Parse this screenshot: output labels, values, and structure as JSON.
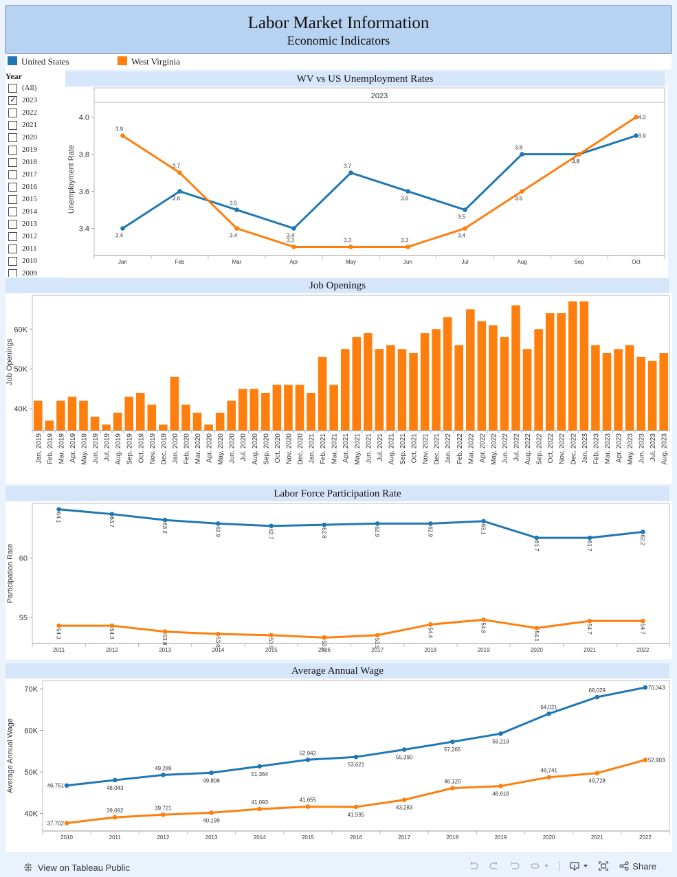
{
  "header": {
    "title": "Labor Market Information",
    "subtitle": "Economic Indicators"
  },
  "legend": [
    {
      "label": "United States",
      "color": "#1f77b4"
    },
    {
      "label": "West Virginia",
      "color": "#ff7f0e"
    }
  ],
  "filter": {
    "title": "Year",
    "options": [
      {
        "label": "(All)",
        "checked": false
      },
      {
        "label": "2023",
        "checked": true
      },
      {
        "label": "2022",
        "checked": false
      },
      {
        "label": "2021",
        "checked": false
      },
      {
        "label": "2020",
        "checked": false
      },
      {
        "label": "2019",
        "checked": false
      },
      {
        "label": "2018",
        "checked": false
      },
      {
        "label": "2017",
        "checked": false
      },
      {
        "label": "2016",
        "checked": false
      },
      {
        "label": "2015",
        "checked": false
      },
      {
        "label": "2014",
        "checked": false
      },
      {
        "label": "2013",
        "checked": false
      },
      {
        "label": "2012",
        "checked": false
      },
      {
        "label": "2011",
        "checked": false
      },
      {
        "label": "2010",
        "checked": false
      },
      {
        "label": "2009",
        "checked": false
      }
    ]
  },
  "chart_data": [
    {
      "id": "unemployment",
      "type": "line",
      "title": "WV vs US Unemployment Rates",
      "pane_header": "2023",
      "xlabel": "",
      "ylabel": "Unemployment Rate",
      "categories": [
        "Jan",
        "Feb",
        "Mar",
        "Apr",
        "May",
        "Jun",
        "Jul",
        "Aug",
        "Sep",
        "Oct"
      ],
      "ylim": [
        3.25,
        4.08
      ],
      "yticks": [
        3.4,
        3.6,
        3.8,
        4.0
      ],
      "ytick_labels": [
        "3.4",
        "3.6",
        "3.8",
        "4.0"
      ],
      "grid": false,
      "series": [
        {
          "name": "United States",
          "color": "#1f77b4",
          "values": [
            3.4,
            3.6,
            3.5,
            3.4,
            3.7,
            3.6,
            3.5,
            3.8,
            3.8,
            3.9
          ]
        },
        {
          "name": "West Virginia",
          "color": "#ff7f0e",
          "values": [
            3.9,
            3.7,
            3.4,
            3.3,
            3.3,
            3.3,
            3.4,
            3.6,
            3.8,
            4.0
          ]
        }
      ]
    },
    {
      "id": "job_openings",
      "type": "bar",
      "title": "Job Openings",
      "xlabel": "",
      "ylabel": "Job Openings",
      "ylim": [
        34500,
        68500
      ],
      "yticks": [
        40000,
        50000,
        60000
      ],
      "ytick_labels": [
        "40K",
        "50K",
        "60K"
      ],
      "grid": false,
      "color": "#ff7f0e",
      "categories": [
        "Jan. 2019",
        "Feb. 2019",
        "Mar. 2019",
        "Apr. 2019",
        "May. 2019",
        "Jun. 2019",
        "Jul. 2019",
        "Aug. 2019",
        "Sep. 2019",
        "Oct. 2019",
        "Nov. 2019",
        "Dec. 2019",
        "Jan. 2020",
        "Feb. 2020",
        "Mar. 2020",
        "Apr. 2020",
        "May. 2020",
        "Jun. 2020",
        "Jul. 2020",
        "Aug. 2020",
        "Sep. 2020",
        "Oct. 2020",
        "Nov. 2020",
        "Dec. 2020",
        "Jan. 2021",
        "Feb. 2021",
        "Mar. 2021",
        "Apr. 2021",
        "May. 2021",
        "Jun. 2021",
        "Jul. 2021",
        "Aug. 2021",
        "Sep. 2021",
        "Oct. 2021",
        "Nov. 2021",
        "Dec. 2021",
        "Jan. 2022",
        "Feb. 2022",
        "Mar. 2022",
        "Apr. 2022",
        "May. 2022",
        "Jun. 2022",
        "Jul. 2022",
        "Aug. 2022",
        "Sep. 2022",
        "Oct. 2022",
        "Nov. 2022",
        "Dec. 2022",
        "Jan. 2023",
        "Feb. 2023",
        "Mar. 2023",
        "Apr. 2023",
        "May. 2023",
        "Jun. 2023",
        "Jul. 2023",
        "Aug. 2023"
      ],
      "values": [
        42000,
        37000,
        42000,
        43000,
        42000,
        38000,
        36000,
        39000,
        43000,
        44000,
        41000,
        36000,
        48000,
        41000,
        39000,
        36000,
        39000,
        42000,
        45000,
        45000,
        44000,
        46000,
        46000,
        46000,
        44000,
        53000,
        46000,
        55000,
        58000,
        59000,
        55000,
        56000,
        55000,
        54000,
        59000,
        60000,
        63000,
        56000,
        65000,
        62000,
        61000,
        58000,
        66000,
        55000,
        60000,
        64000,
        64000,
        67000,
        67000,
        56000,
        54000,
        55000,
        56000,
        53000,
        52000,
        54000
      ]
    },
    {
      "id": "participation",
      "type": "line",
      "title": "Labor Force Participation Rate",
      "xlabel": "",
      "ylabel": "Participation Rate",
      "categories": [
        "2011",
        "2012",
        "2013",
        "2014",
        "2015",
        "2016",
        "2017",
        "2018",
        "2019",
        "2020",
        "2021",
        "2022"
      ],
      "ylim": [
        52.8,
        64.6
      ],
      "yticks": [
        55,
        60
      ],
      "ytick_labels": [
        "55",
        "60"
      ],
      "grid": false,
      "series": [
        {
          "name": "United States",
          "color": "#1f77b4",
          "values": [
            64.1,
            63.7,
            63.2,
            62.9,
            62.7,
            62.8,
            62.9,
            62.9,
            63.1,
            61.7,
            61.7,
            62.2
          ]
        },
        {
          "name": "West Virginia",
          "color": "#ff7f0e",
          "values": [
            54.3,
            54.3,
            53.8,
            53.6,
            53.5,
            53.3,
            53.5,
            54.4,
            54.8,
            54.1,
            54.7,
            54.7
          ]
        }
      ]
    },
    {
      "id": "wage",
      "type": "line",
      "title": "Average Annual Wage",
      "xlabel": "",
      "ylabel": "Average Annual Wage",
      "categories": [
        "2010",
        "2011",
        "2012",
        "2013",
        "2014",
        "2015",
        "2016",
        "2017",
        "2018",
        "2019",
        "2020",
        "2021",
        "2022"
      ],
      "ylim": [
        35800,
        72000
      ],
      "yticks": [
        40000,
        50000,
        60000,
        70000
      ],
      "ytick_labels": [
        "40K",
        "50K",
        "60K",
        "70K"
      ],
      "grid": false,
      "series": [
        {
          "name": "United States",
          "color": "#1f77b4",
          "values": [
            46751,
            48043,
            49289,
            49808,
            51364,
            52942,
            53621,
            55390,
            57265,
            59219,
            64021,
            68029,
            70343
          ],
          "labels": [
            "46,751",
            "48,043",
            "49,289",
            "49,808",
            "51,364",
            "52,942",
            "53,621",
            "55,390",
            "57,265",
            "59,219",
            "64,021",
            "68,029",
            "70,343"
          ]
        },
        {
          "name": "West Virginia",
          "color": "#ff7f0e",
          "values": [
            37702,
            39092,
            39721,
            40199,
            41093,
            41655,
            41595,
            43283,
            46120,
            46616,
            48741,
            49728,
            52903
          ],
          "labels": [
            "37,702",
            "39,092",
            "39,721",
            "40,199",
            "41,093",
            "41,655",
            "41,595",
            "43,283",
            "46,120",
            "46,616",
            "48,741",
            "49,728",
            "52,903"
          ]
        }
      ]
    }
  ],
  "footer": {
    "view_label": "View on Tableau Public",
    "share_label": "Share"
  }
}
